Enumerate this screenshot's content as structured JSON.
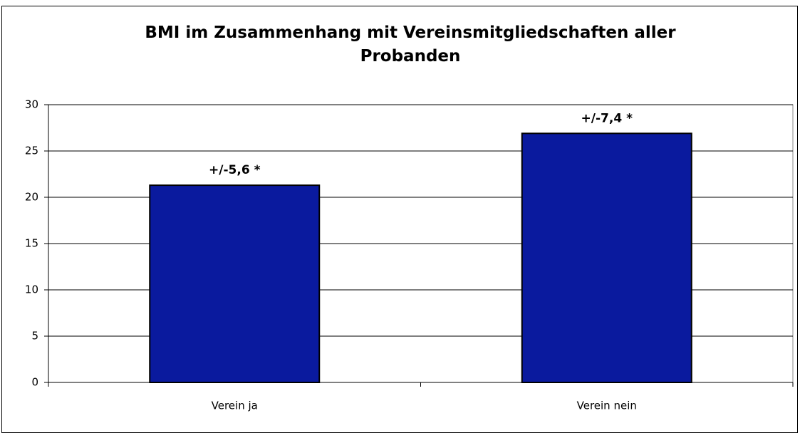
{
  "chart_data": {
    "type": "bar",
    "title": "BMI im Zusammenhang mit Vereinsmitgliedschaften aller Probanden",
    "categories": [
      "Verein ja",
      "Verein nein"
    ],
    "values": [
      21.3,
      26.9
    ],
    "annotations": [
      "+/-5,6 *",
      "+/-7,4 *"
    ],
    "color": "#0a1a9e",
    "ylim": [
      0,
      30
    ],
    "yticks": [
      0,
      5,
      10,
      15,
      20,
      25,
      30
    ],
    "grid": true
  }
}
